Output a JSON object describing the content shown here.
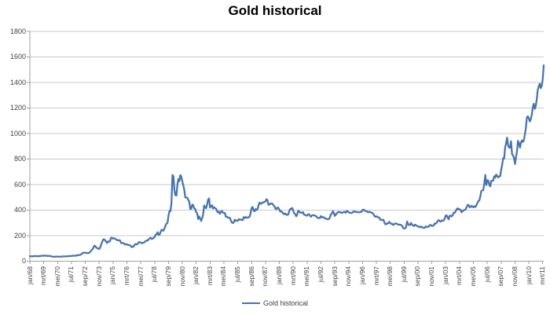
{
  "chart_data": {
    "type": "line",
    "title": "Gold historical",
    "legend_label": "Gold historical",
    "legend_position": "bottom",
    "xlabel": "",
    "ylabel": "",
    "ylim": [
      0,
      1800
    ],
    "ytick_step": 200,
    "yticks": [
      0,
      200,
      400,
      600,
      800,
      1000,
      1200,
      1400,
      1600,
      1800
    ],
    "grid": "horizontal",
    "x_description": "monthly values from jan/68 to apr/11, axis labels every 14 months",
    "tick_every_months": 14,
    "tick_labels": [
      "jan/68",
      "mrt/69",
      "mei/70",
      "jul/71",
      "sep/72",
      "nov/73",
      "jan/75",
      "mrt/76",
      "mei/77",
      "jul/78",
      "sep/79",
      "nov/80",
      "jan/82",
      "mrt/83",
      "mei/84",
      "jul/85",
      "sep/86",
      "nov/87",
      "jan/89",
      "mrt/90",
      "mei/91",
      "jul/92",
      "sep/93",
      "nov/94",
      "jan/96",
      "mrt/97",
      "mei/98",
      "jul/99",
      "sep/00",
      "nov/01",
      "jan/03",
      "mrt/04",
      "mei/05",
      "jul/06",
      "sep/07",
      "nov/08",
      "jan/10",
      "mrt/11"
    ],
    "series": [
      {
        "name": "Gold historical",
        "values": [
          38,
          38,
          38,
          38,
          39,
          41,
          40,
          39,
          40,
          39,
          40,
          41,
          42,
          43,
          43,
          43,
          44,
          41,
          42,
          41,
          41,
          40,
          37,
          35,
          35,
          35,
          35,
          36,
          36,
          35,
          35,
          35,
          36,
          38,
          37,
          37,
          38,
          39,
          39,
          39,
          41,
          40,
          41,
          43,
          42,
          43,
          43,
          44,
          46,
          48,
          48,
          49,
          55,
          62,
          66,
          67,
          66,
          65,
          63,
          64,
          65,
          74,
          84,
          91,
          102,
          120,
          120,
          107,
          103,
          100,
          95,
          107,
          129,
          150,
          168,
          172,
          163,
          154,
          143,
          155,
          152,
          159,
          182,
          184,
          176,
          180,
          178,
          170,
          167,
          164,
          165,
          163,
          144,
          143,
          142,
          139,
          132,
          131,
          133,
          128,
          127,
          126,
          118,
          110,
          114,
          116,
          131,
          134,
          132,
          136,
          148,
          149,
          147,
          141,
          143,
          145,
          150,
          159,
          162,
          161,
          173,
          178,
          184,
          175,
          176,
          184,
          189,
          206,
          212,
          227,
          206,
          208,
          227,
          246,
          242,
          239,
          258,
          279,
          295,
          301,
          355,
          392,
          392,
          455,
          675,
          665,
          554,
          517,
          514,
          601,
          644,
          627,
          674,
          661,
          624,
          595,
          557,
          500,
          499,
          496,
          480,
          465,
          409,
          410,
          444,
          438,
          413,
          410,
          384,
          374,
          330,
          350,
          334,
          315,
          339,
          364,
          436,
          422,
          415,
          444,
          481,
          492,
          420,
          433,
          438,
          413,
          423,
          416,
          412,
          394,
          382,
          389,
          371,
          386,
          394,
          381,
          377,
          378,
          348,
          348,
          341,
          340,
          341,
          320,
          303,
          299,
          304,
          325,
          317,
          317,
          317,
          329,
          324,
          326,
          325,
          321,
          345,
          339,
          346,
          340,
          343,
          343,
          349,
          377,
          418,
          424,
          399,
          391,
          408,
          401,
          409,
          438,
          460,
          450,
          451,
          461,
          460,
          465,
          468,
          486,
          477,
          442,
          444,
          452,
          451,
          451,
          438,
          431,
          413,
          407,
          420,
          419,
          404,
          388,
          390,
          384,
          371,
          368,
          375,
          365,
          362,
          367,
          394,
          409,
          410,
          417,
          393,
          374,
          369,
          352,
          363,
          395,
          388,
          381,
          382,
          378,
          384,
          364,
          363,
          358,
          357,
          367,
          368,
          356,
          349,
          359,
          360,
          361,
          355,
          354,
          344,
          339,
          337,
          341,
          353,
          343,
          346,
          344,
          335,
          335,
          329,
          329,
          330,
          342,
          367,
          372,
          392,
          379,
          355,
          364,
          374,
          383,
          387,
          382,
          384,
          377,
          381,
          386,
          386,
          380,
          392,
          390,
          384,
          379,
          379,
          377,
          382,
          391,
          385,
          388,
          386,
          384,
          383,
          383,
          385,
          387,
          400,
          405,
          396,
          393,
          392,
          385,
          384,
          387,
          383,
          381,
          378,
          369,
          355,
          347,
          352,
          345,
          344,
          341,
          324,
          324,
          323,
          325,
          306,
          289,
          289,
          298,
          296,
          308,
          299,
          292,
          293,
          284,
          289,
          296,
          294,
          292,
          287,
          287,
          286,
          283,
          277,
          261,
          256,
          257,
          265,
          311,
          293,
          284,
          284,
          300,
          286,
          280,
          275,
          286,
          282,
          275,
          274,
          270,
          266,
          272,
          266,
          262,
          263,
          261,
          272,
          270,
          268,
          272,
          283,
          283,
          276,
          276,
          282,
          296,
          294,
          303,
          315,
          321,
          313,
          310,
          319,
          317,
          319,
          333,
          357,
          359,
          341,
          328,
          356,
          356,
          351,
          360,
          379,
          379,
          389,
          407,
          414,
          405,
          407,
          403,
          384,
          392,
          398,
          401,
          405,
          421,
          439,
          442,
          424,
          423,
          434,
          429,
          422,
          431,
          425,
          438,
          456,
          470,
          477,
          510,
          550,
          555,
          557,
          611,
          675,
          596,
          634,
          633,
          598,
          586,
          628,
          630,
          631,
          665,
          655,
          679,
          667,
          656,
          665,
          665,
          713,
          755,
          806,
          803,
          890,
          922,
          968,
          910,
          889,
          890,
          940,
          839,
          830,
          807,
          761,
          816,
          859,
          943,
          924,
          890,
          929,
          946,
          934,
          949,
          997,
          1043,
          1127,
          1135,
          1118,
          1095,
          1113,
          1149,
          1205,
          1233,
          1193,
          1216,
          1271,
          1342,
          1370,
          1391,
          1356,
          1373,
          1424,
          1535
        ]
      }
    ],
    "colors": {
      "series": "#4472B8",
      "gridline": "#C9C9C9",
      "axis": "#9E9E9E",
      "text": "#3F3F3F",
      "title": "#000000",
      "background": "#FFFFFF"
    }
  }
}
